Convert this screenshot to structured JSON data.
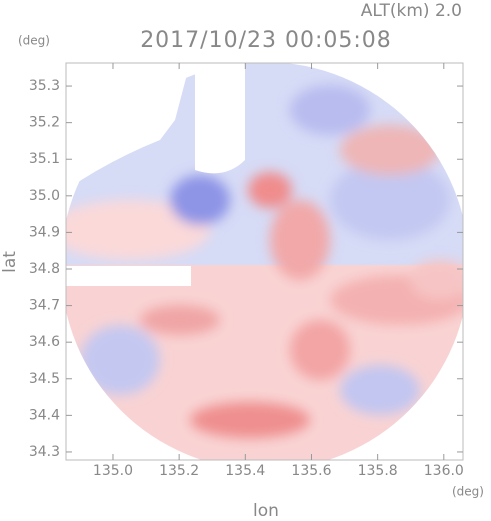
{
  "chart_data": {
    "type": "image",
    "title": "2017/10/23 00:05:08",
    "subtitle": "ALT(km) 2.0",
    "x_label": "lon",
    "x_unit": "(deg)",
    "y_label": "lat",
    "y_unit": "(deg)",
    "xlim": [
      134.858,
      136.058
    ],
    "ylim": [
      34.278,
      35.363
    ],
    "xticks": [
      {
        "value": 135,
        "label": "135.0"
      },
      135.2,
      135.4,
      135.6,
      135.8,
      {
        "value": 136,
        "label": "136.0"
      }
    ],
    "yticks": [
      34.3,
      34.4,
      34.5,
      34.6,
      34.7,
      34.8,
      34.9,
      {
        "value": 35,
        "label": "35.0"
      },
      35.1,
      35.2,
      35.3
    ]
  }
}
